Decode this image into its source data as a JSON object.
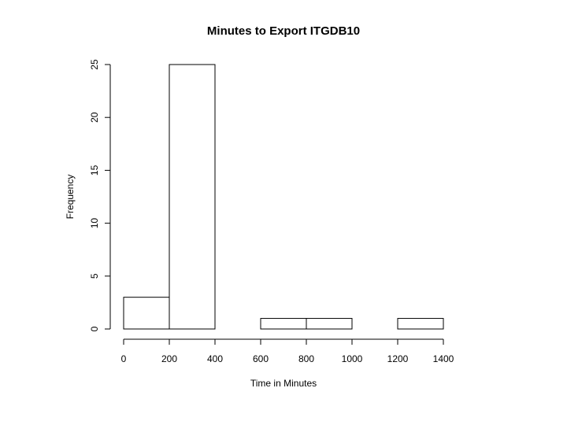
{
  "chart_data": {
    "type": "histogram",
    "title": "Minutes to Export ITGDB10",
    "x_label": "Time in Minutes",
    "y_label": "Frequency",
    "bins": [
      0,
      200,
      400,
      600,
      800,
      1000,
      1200,
      1400
    ],
    "values": [
      3,
      25,
      0,
      1,
      1,
      0,
      1
    ],
    "color": "#ffffff",
    "xlim": [
      0,
      1400
    ],
    "xticks": [
      0,
      200,
      400,
      600,
      800,
      1000,
      1200,
      1400
    ],
    "ylim": [
      0,
      25
    ],
    "yticks": [
      0,
      5,
      10,
      15,
      20,
      25
    ]
  }
}
